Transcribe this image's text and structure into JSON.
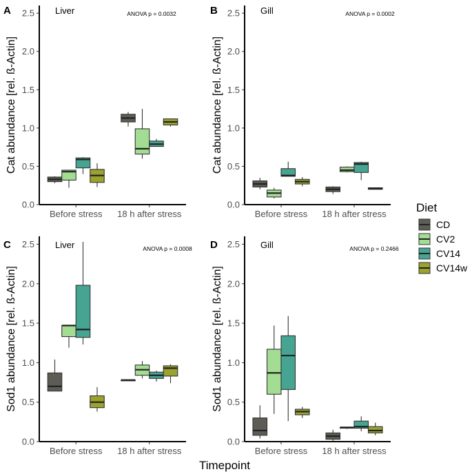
{
  "xlabel": "Timepoint",
  "legend": {
    "title": "Diet",
    "items": [
      {
        "name": "CD",
        "color": "#5d5d55"
      },
      {
        "name": "CV2",
        "color": "#a3dd93"
      },
      {
        "name": "CV14",
        "color": "#45a592"
      },
      {
        "name": "CV14w",
        "color": "#9ba22e"
      }
    ]
  },
  "chart_data": [
    {
      "type": "boxplot",
      "panel": "A",
      "tissue": "Liver",
      "annotation": "ANOVA p =  0.0032",
      "ylabel": "Cat abundance [rel. ß-Actin]",
      "ylim": [
        0,
        2.6
      ],
      "yticks": [
        "0.0",
        "0.5",
        "1.0",
        "1.5",
        "2.0",
        "2.5"
      ],
      "categories": [
        "Before stress",
        "18 h after stress"
      ],
      "boxes": [
        {
          "group": 0,
          "diet": "CD",
          "min": 0.28,
          "q1": 0.3,
          "median": 0.33,
          "q3": 0.36,
          "max": 0.37
        },
        {
          "group": 0,
          "diet": "CV2",
          "min": 0.22,
          "q1": 0.32,
          "median": 0.43,
          "q3": 0.45,
          "max": 0.45
        },
        {
          "group": 0,
          "diet": "CV14",
          "min": 0.4,
          "q1": 0.48,
          "median": 0.59,
          "q3": 0.61,
          "max": 0.62
        },
        {
          "group": 0,
          "diet": "CV14w",
          "min": 0.23,
          "q1": 0.29,
          "median": 0.38,
          "q3": 0.46,
          "max": 0.54
        },
        {
          "group": 1,
          "diet": "CD",
          "min": 1.02,
          "q1": 1.08,
          "median": 1.13,
          "q3": 1.18,
          "max": 1.21
        },
        {
          "group": 1,
          "diet": "CV2",
          "min": 0.6,
          "q1": 0.66,
          "median": 0.73,
          "q3": 0.99,
          "max": 1.25
        },
        {
          "group": 1,
          "diet": "CV14",
          "min": 0.76,
          "q1": 0.76,
          "median": 0.79,
          "q3": 0.83,
          "max": 0.86
        },
        {
          "group": 1,
          "diet": "CV14w",
          "min": 1.02,
          "q1": 1.04,
          "median": 1.08,
          "q3": 1.12,
          "max": 1.12
        }
      ]
    },
    {
      "type": "boxplot",
      "panel": "B",
      "tissue": "Gill",
      "annotation": "ANOVA p = 0.0002",
      "ylabel": "Cat abundance [rel. ß-Actin]",
      "ylim": [
        0,
        2.6
      ],
      "yticks": [
        "0.0",
        "0.5",
        "1.0",
        "1.5",
        "2.0",
        "2.5"
      ],
      "categories": [
        "Before stress",
        "18 h after stress"
      ],
      "boxes": [
        {
          "group": 0,
          "diet": "CD",
          "min": 0.2,
          "q1": 0.23,
          "median": 0.27,
          "q3": 0.31,
          "max": 0.35
        },
        {
          "group": 0,
          "diet": "CV2",
          "min": 0.08,
          "q1": 0.1,
          "median": 0.15,
          "q3": 0.19,
          "max": 0.22
        },
        {
          "group": 0,
          "diet": "CV14",
          "min": 0.37,
          "q1": 0.37,
          "median": 0.38,
          "q3": 0.47,
          "max": 0.56
        },
        {
          "group": 0,
          "diet": "CV14w",
          "min": 0.24,
          "q1": 0.27,
          "median": 0.3,
          "q3": 0.33,
          "max": 0.36
        },
        {
          "group": 1,
          "diet": "CD",
          "min": 0.14,
          "q1": 0.17,
          "median": 0.2,
          "q3": 0.23,
          "max": 0.24
        },
        {
          "group": 1,
          "diet": "CV2",
          "min": 0.42,
          "q1": 0.43,
          "median": 0.45,
          "q3": 0.49,
          "max": 0.5
        },
        {
          "group": 1,
          "diet": "CV14",
          "min": 0.32,
          "q1": 0.42,
          "median": 0.53,
          "q3": 0.55,
          "max": 0.56
        },
        {
          "group": 1,
          "diet": "CV14w",
          "min": 0.2,
          "q1": 0.2,
          "median": 0.21,
          "q3": 0.22,
          "max": 0.22
        }
      ]
    },
    {
      "type": "boxplot",
      "panel": "C",
      "tissue": "Liver",
      "annotation": "ANOVA p = 0.0008",
      "ylabel": "Sod1 abundance [rel. ß-Actin]",
      "ylim": [
        0,
        2.6
      ],
      "yticks": [
        "0.0",
        "0.5",
        "1.0",
        "1.5",
        "2.0",
        "2.5"
      ],
      "categories": [
        "Before stress",
        "18 h after stress"
      ],
      "boxes": [
        {
          "group": 0,
          "diet": "CD",
          "min": 0.64,
          "q1": 0.64,
          "median": 0.7,
          "q3": 0.87,
          "max": 1.04
        },
        {
          "group": 0,
          "diet": "CV2",
          "min": 1.19,
          "q1": 1.33,
          "median": 1.47,
          "q3": 1.47,
          "max": 1.47
        },
        {
          "group": 0,
          "diet": "CV14",
          "min": 1.23,
          "q1": 1.32,
          "median": 1.42,
          "q3": 1.98,
          "max": 2.53
        },
        {
          "group": 0,
          "diet": "CV14w",
          "min": 0.38,
          "q1": 0.43,
          "median": 0.5,
          "q3": 0.58,
          "max": 0.69
        },
        {
          "group": 1,
          "diet": "CD",
          "min": 0.77,
          "q1": 0.77,
          "median": 0.78,
          "q3": 0.78,
          "max": 0.78
        },
        {
          "group": 1,
          "diet": "CV2",
          "min": 0.8,
          "q1": 0.84,
          "median": 0.91,
          "q3": 0.97,
          "max": 1.02
        },
        {
          "group": 1,
          "diet": "CV14",
          "min": 0.76,
          "q1": 0.8,
          "median": 0.84,
          "q3": 0.88,
          "max": 0.9
        },
        {
          "group": 1,
          "diet": "CV14w",
          "min": 0.74,
          "q1": 0.83,
          "median": 0.93,
          "q3": 0.96,
          "max": 0.98
        }
      ]
    },
    {
      "type": "boxplot",
      "panel": "D",
      "tissue": "Gill",
      "annotation": "ANOVA p = 0.2466",
      "ylabel": "Sod1 abundance [rel. ß-Actin]",
      "ylim": [
        0,
        2.6
      ],
      "yticks": [
        "0.0",
        "0.5",
        "1.0",
        "1.5",
        "2.0",
        "2.5"
      ],
      "categories": [
        "Before stress",
        "18 h after stress"
      ],
      "boxes": [
        {
          "group": 0,
          "diet": "CD",
          "min": 0.04,
          "q1": 0.08,
          "median": 0.14,
          "q3": 0.3,
          "max": 0.46
        },
        {
          "group": 0,
          "diet": "CV2",
          "min": 0.35,
          "q1": 0.6,
          "median": 0.87,
          "q3": 1.17,
          "max": 1.47
        },
        {
          "group": 0,
          "diet": "CV14",
          "min": 0.26,
          "q1": 0.66,
          "median": 1.09,
          "q3": 1.34,
          "max": 1.59
        },
        {
          "group": 0,
          "diet": "CV14w",
          "min": 0.3,
          "q1": 0.34,
          "median": 0.38,
          "q3": 0.41,
          "max": 0.44
        },
        {
          "group": 1,
          "diet": "CD",
          "min": 0.01,
          "q1": 0.03,
          "median": 0.07,
          "q3": 0.11,
          "max": 0.15
        },
        {
          "group": 1,
          "diet": "CV2",
          "min": 0.16,
          "q1": 0.17,
          "median": 0.18,
          "q3": 0.18,
          "max": 0.18
        },
        {
          "group": 1,
          "diet": "CV14",
          "min": 0.13,
          "q1": 0.17,
          "median": 0.19,
          "q3": 0.26,
          "max": 0.32
        },
        {
          "group": 1,
          "diet": "CV14w",
          "min": 0.08,
          "q1": 0.11,
          "median": 0.14,
          "q3": 0.19,
          "max": 0.24
        }
      ]
    }
  ]
}
